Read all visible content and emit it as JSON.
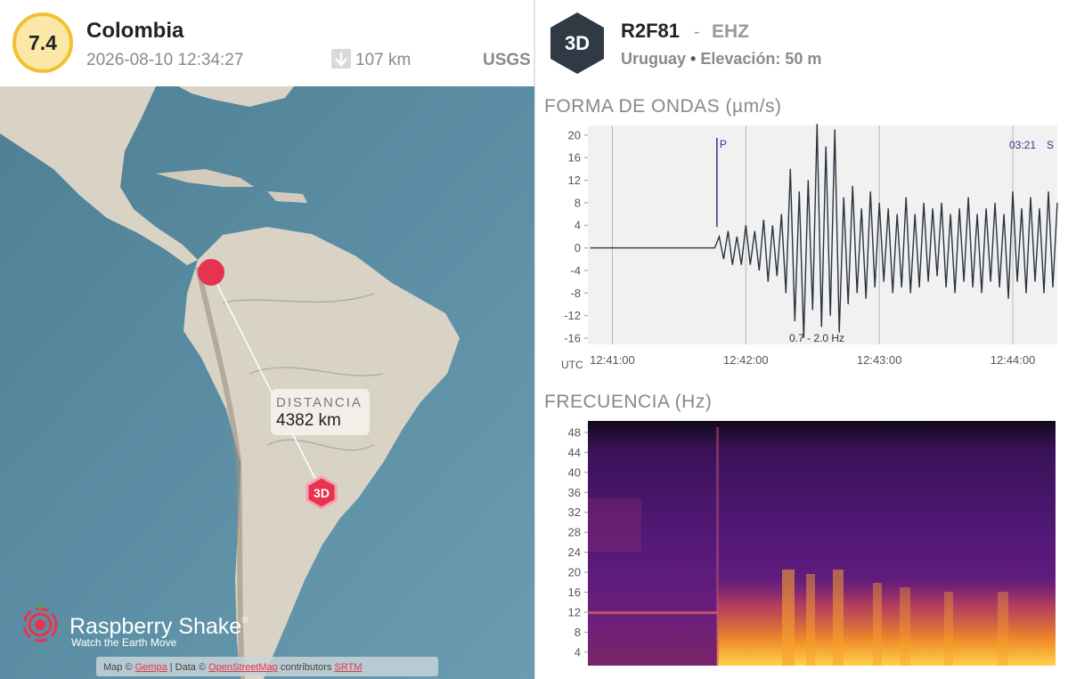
{
  "event": {
    "magnitude": "7.4",
    "region": "Colombia",
    "datetime": "2026-08-10 12:34:27",
    "depth": "107 km",
    "source": "USGS"
  },
  "station": {
    "badge": "3D",
    "code": "R2F81",
    "separator": "-",
    "channel": "EHZ",
    "country": "Uruguay",
    "bullet": "•",
    "elevation": "Elevación: 50 m"
  },
  "map": {
    "distance_label": "DISTANCIA",
    "distance": "4382 km",
    "station_marker": "3D",
    "brand": "Raspberry Shake",
    "brand_mark": "®",
    "tagline": "Watch the Earth Move",
    "attribution": [
      "Map ©",
      "Gempa",
      "| Data ©",
      "OpenStreetMap",
      "contributors",
      "SRTM"
    ]
  },
  "chart_data": [
    {
      "type": "line",
      "title": "FORMA DE ONDAS (µm/s)",
      "xlabel": "UTC",
      "color": "#2b3440",
      "grid": true,
      "filter_label": "0.7 - 2.0 Hz",
      "markers": [
        {
          "label": "P",
          "x": 45707
        }
      ],
      "s_note": {
        "offset": "03:21",
        "label": "S"
      },
      "xlim": [
        45649,
        45860
      ],
      "ylim": [
        -17.1,
        21.7
      ],
      "xticks": [
        {
          "value": 45660,
          "label": "12:41:00"
        },
        {
          "value": 45720,
          "label": "12:42:00"
        },
        {
          "value": 45780,
          "label": "12:43:00"
        },
        {
          "value": 45840,
          "label": "12:44:00"
        }
      ],
      "yticks": [
        20,
        16,
        12,
        8,
        4,
        0,
        -4,
        -8,
        -12,
        -16
      ],
      "x": [
        45650,
        45652,
        45654,
        45656,
        45658,
        45660,
        45662,
        45664,
        45666,
        45668,
        45670,
        45672,
        45674,
        45676,
        45678,
        45680,
        45682,
        45684,
        45686,
        45688,
        45690,
        45692,
        45694,
        45696,
        45698,
        45700,
        45702,
        45704,
        45706,
        45708,
        45710,
        45712,
        45714,
        45716,
        45718,
        45720,
        45722,
        45724,
        45726,
        45728,
        45730,
        45732,
        45734,
        45736,
        45738,
        45740,
        45742,
        45744,
        45746,
        45748,
        45750,
        45752,
        45754,
        45756,
        45758,
        45760,
        45762,
        45764,
        45766,
        45768,
        45770,
        45772,
        45774,
        45776,
        45778,
        45780,
        45782,
        45784,
        45786,
        45788,
        45790,
        45792,
        45794,
        45796,
        45798,
        45800,
        45802,
        45804,
        45806,
        45808,
        45810,
        45812,
        45814,
        45816,
        45818,
        45820,
        45822,
        45824,
        45826,
        45828,
        45830,
        45832,
        45834,
        45836,
        45838,
        45840,
        45842,
        45844,
        45846,
        45848,
        45850,
        45852,
        45854,
        45856,
        45858,
        45860
      ],
      "values": [
        0,
        0,
        0,
        0,
        0,
        0,
        0,
        0,
        0,
        0,
        0,
        0,
        0,
        0,
        0,
        0,
        0,
        0,
        0,
        0,
        0,
        0,
        0,
        0,
        0,
        0,
        0,
        0,
        0,
        2,
        -2,
        3,
        -3,
        2,
        -3,
        4,
        -3,
        3,
        -4,
        5,
        -6,
        4,
        -5,
        6,
        -8,
        14,
        -13,
        10,
        -16,
        12,
        -11,
        22,
        -14,
        18,
        -12,
        21,
        -15,
        9,
        -10,
        11,
        -8,
        7,
        -9,
        10,
        -7,
        8,
        -6,
        7,
        -8,
        6,
        -7,
        9,
        -8,
        6,
        -7,
        8,
        -6,
        7,
        -5,
        8,
        -7,
        6,
        -8,
        7,
        -6,
        9,
        -7,
        6,
        -8,
        7,
        -6,
        8,
        -7,
        6,
        -9,
        10,
        -6,
        7,
        -8,
        9,
        -6,
        7,
        -8,
        10,
        -7,
        8
      ]
    },
    {
      "type": "spectrogram",
      "title": "FRECUENCIA (Hz)",
      "ylim": [
        1.3,
        50.3
      ],
      "yticks": [
        48,
        44,
        40,
        36,
        32,
        28,
        24,
        20,
        16,
        12,
        8,
        4
      ]
    }
  ]
}
